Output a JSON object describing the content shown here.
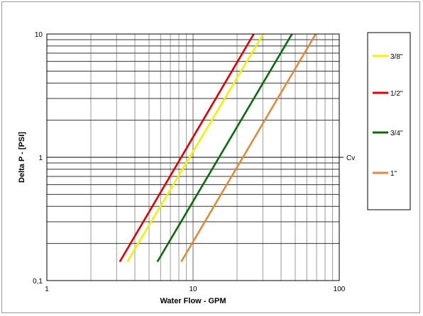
{
  "chart_data": {
    "type": "line",
    "title": "",
    "xlabel": "Water Flow  - GPM",
    "ylabel": "Delta P - [PSI]",
    "xscale": "log",
    "yscale": "log",
    "xlim": [
      1,
      100
    ],
    "ylim": [
      0.1,
      10
    ],
    "x_tick_labels": [
      {
        "value": 1,
        "label": "1"
      },
      {
        "value": 10,
        "label": "10"
      },
      {
        "value": 100,
        "label": "100"
      }
    ],
    "y_tick_labels": [
      {
        "value": 0.1,
        "label": "0,1"
      },
      {
        "value": 1,
        "label": "1"
      },
      {
        "value": 10,
        "label": "10"
      }
    ],
    "grid": true,
    "reference_line": {
      "value": 1,
      "label": "Cv"
    },
    "legend_position": "right",
    "series": [
      {
        "name": "3/8\"",
        "color": "#f2f200",
        "x": [
          3.55,
          30.2
        ],
        "y": [
          0.142,
          10
        ]
      },
      {
        "name": "1/2\"",
        "color": "#e00000",
        "x": [
          3.15,
          26.0
        ],
        "y": [
          0.142,
          10
        ]
      },
      {
        "name": "3/4\"",
        "color": "#0a6b0a",
        "x": [
          5.7,
          47.5
        ],
        "y": [
          0.142,
          10
        ]
      },
      {
        "name": "1\"",
        "color": "#e08a3a",
        "x": [
          8.3,
          69.0
        ],
        "y": [
          0.142,
          10
        ]
      }
    ]
  }
}
